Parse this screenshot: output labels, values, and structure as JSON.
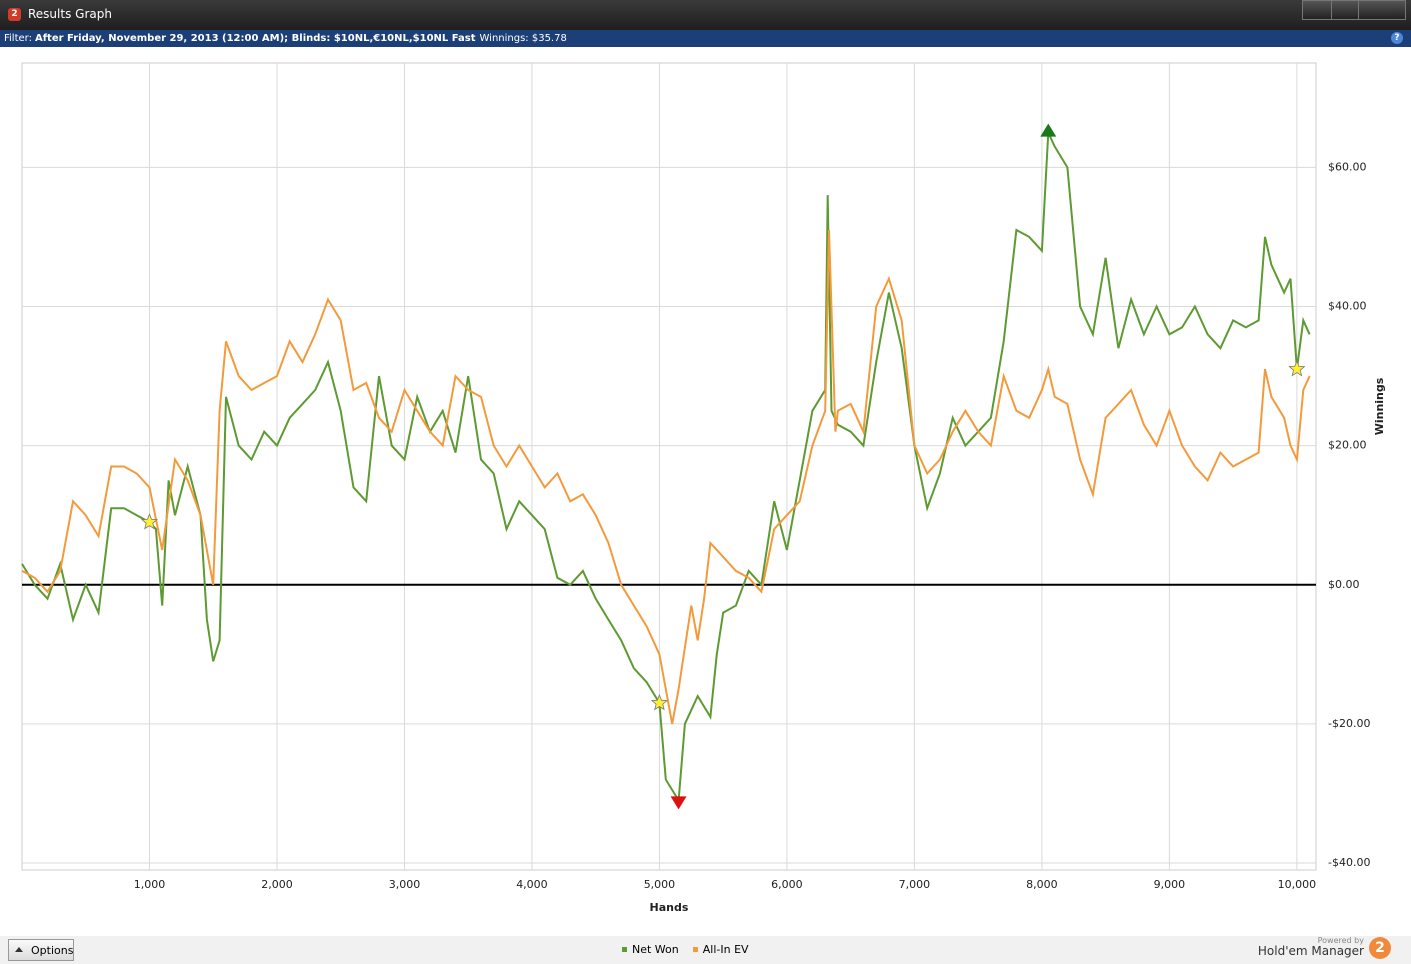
{
  "window": {
    "title": "Results Graph",
    "icon": "2",
    "filter_label": "Filter:",
    "filter_text": "After Friday, November 29, 2013 (12:00 AM); Blinds: $10NL,€10NL,$10NL Fast",
    "winnings": "Winnings: $35.78",
    "help": "?",
    "options": "Options",
    "powered_by": "Powered by",
    "brand": "Hold'em Manager",
    "brand_logo": "2"
  },
  "chart_data": {
    "type": "line",
    "xlabel": "Hands",
    "ylabel": "Winnings",
    "xlim": [
      0,
      10150
    ],
    "ylim": [
      -41,
      75
    ],
    "grid": true,
    "xticks": [
      {
        "value": 1000,
        "label": "1,000"
      },
      {
        "value": 2000,
        "label": "2,000"
      },
      {
        "value": 3000,
        "label": "3,000"
      },
      {
        "value": 4000,
        "label": "4,000"
      },
      {
        "value": 5000,
        "label": "5,000"
      },
      {
        "value": 6000,
        "label": "6,000"
      },
      {
        "value": 7000,
        "label": "7,000"
      },
      {
        "value": 8000,
        "label": "8,000"
      },
      {
        "value": 9000,
        "label": "9,000"
      },
      {
        "value": 10000,
        "label": "10,000"
      }
    ],
    "yticks": [
      {
        "value": -40,
        "label": "-$40.00"
      },
      {
        "value": -20,
        "label": "-$20.00"
      },
      {
        "value": 0,
        "label": "$0.00"
      },
      {
        "value": 20,
        "label": "$20.00"
      },
      {
        "value": 40,
        "label": "$40.00"
      },
      {
        "value": 60,
        "label": "$60.00"
      }
    ],
    "series": [
      {
        "name": "Net Won",
        "color": "#5e9a32",
        "x": [
          0,
          100,
          200,
          300,
          400,
          500,
          600,
          700,
          800,
          900,
          1000,
          1050,
          1100,
          1150,
          1200,
          1300,
          1400,
          1450,
          1500,
          1550,
          1600,
          1700,
          1800,
          1900,
          2000,
          2100,
          2200,
          2300,
          2400,
          2500,
          2600,
          2700,
          2800,
          2900,
          3000,
          3100,
          3200,
          3300,
          3400,
          3500,
          3600,
          3700,
          3800,
          3900,
          4000,
          4100,
          4200,
          4300,
          4400,
          4500,
          4600,
          4700,
          4800,
          4900,
          5000,
          5050,
          5150,
          5200,
          5300,
          5400,
          5450,
          5500,
          5600,
          5700,
          5800,
          5900,
          6000,
          6100,
          6200,
          6300,
          6320,
          6350,
          6400,
          6500,
          6600,
          6700,
          6800,
          6900,
          7000,
          7100,
          7200,
          7300,
          7400,
          7500,
          7600,
          7700,
          7800,
          7900,
          8000,
          8050,
          8100,
          8200,
          8300,
          8400,
          8500,
          8600,
          8700,
          8800,
          8900,
          9000,
          9100,
          9200,
          9300,
          9400,
          9500,
          9600,
          9700,
          9750,
          9800,
          9900,
          9950,
          10000,
          10050,
          10100
        ],
        "values": [
          3,
          0,
          -2,
          3,
          -5,
          0,
          -4,
          11,
          11,
          10,
          9,
          8,
          -3,
          15,
          10,
          17,
          10,
          -5,
          -11,
          -8,
          27,
          20,
          18,
          22,
          20,
          24,
          26,
          28,
          32,
          25,
          14,
          12,
          30,
          20,
          18,
          27,
          22,
          25,
          19,
          30,
          18,
          16,
          8,
          12,
          10,
          8,
          1,
          0,
          2,
          -2,
          -5,
          -8,
          -12,
          -14,
          -17,
          -28,
          -31,
          -20,
          -16,
          -19,
          -10,
          -4,
          -3,
          2,
          0,
          12,
          5,
          15,
          25,
          28,
          56,
          25,
          23,
          22,
          20,
          32,
          42,
          34,
          20,
          11,
          16,
          24,
          20,
          22,
          24,
          35,
          51,
          50,
          48,
          65,
          63,
          60,
          40,
          36,
          47,
          34,
          41,
          36,
          40,
          36,
          37,
          40,
          36,
          34,
          38,
          37,
          38,
          50,
          46,
          42,
          44,
          31,
          38,
          36
        ]
      },
      {
        "name": "All-In EV",
        "color": "#f39a3c",
        "x": [
          0,
          100,
          200,
          300,
          400,
          500,
          600,
          700,
          800,
          900,
          1000,
          1100,
          1200,
          1300,
          1400,
          1500,
          1550,
          1600,
          1700,
          1800,
          1900,
          2000,
          2100,
          2200,
          2300,
          2400,
          2500,
          2600,
          2700,
          2800,
          2900,
          3000,
          3100,
          3200,
          3300,
          3400,
          3500,
          3600,
          3700,
          3800,
          3900,
          4000,
          4100,
          4200,
          4300,
          4400,
          4500,
          4600,
          4700,
          4800,
          4900,
          5000,
          5100,
          5150,
          5200,
          5250,
          5300,
          5350,
          5400,
          5500,
          5600,
          5700,
          5800,
          5900,
          6000,
          6100,
          6200,
          6300,
          6330,
          6380,
          6400,
          6500,
          6600,
          6700,
          6800,
          6900,
          7000,
          7100,
          7200,
          7300,
          7400,
          7500,
          7600,
          7700,
          7800,
          7900,
          8000,
          8050,
          8100,
          8200,
          8300,
          8400,
          8500,
          8600,
          8700,
          8800,
          8900,
          9000,
          9100,
          9200,
          9300,
          9400,
          9500,
          9600,
          9700,
          9750,
          9800,
          9900,
          9950,
          10000,
          10050,
          10100
        ],
        "values": [
          2,
          1,
          -1,
          2,
          12,
          10,
          7,
          17,
          17,
          16,
          14,
          5,
          18,
          15,
          10,
          0,
          25,
          35,
          30,
          28,
          29,
          30,
          35,
          32,
          36,
          41,
          38,
          28,
          29,
          24,
          22,
          28,
          25,
          22,
          20,
          30,
          28,
          27,
          20,
          17,
          20,
          17,
          14,
          16,
          12,
          13,
          10,
          6,
          0,
          -3,
          -6,
          -10,
          -20,
          -15,
          -9,
          -3,
          -8,
          -2,
          6,
          4,
          2,
          1,
          -1,
          8,
          10,
          12,
          20,
          25,
          51,
          22,
          25,
          26,
          22,
          40,
          44,
          38,
          20,
          16,
          18,
          22,
          25,
          22,
          20,
          30,
          25,
          24,
          28,
          31,
          27,
          26,
          18,
          13,
          24,
          26,
          28,
          23,
          20,
          25,
          20,
          17,
          15,
          19,
          17,
          18,
          19,
          31,
          27,
          24,
          20,
          18,
          28,
          30
        ]
      }
    ],
    "markers": [
      {
        "shape": "star",
        "color": "#ffee33",
        "x": 1000,
        "y": 9
      },
      {
        "shape": "star",
        "color": "#ffee33",
        "x": 5000,
        "y": -17
      },
      {
        "shape": "star",
        "color": "#ffee33",
        "x": 10000,
        "y": 31
      },
      {
        "shape": "triangle-up",
        "color": "#1a7a1a",
        "x": 8050,
        "y": 65
      },
      {
        "shape": "triangle-down",
        "color": "#dd1111",
        "x": 5150,
        "y": -31
      }
    ]
  }
}
